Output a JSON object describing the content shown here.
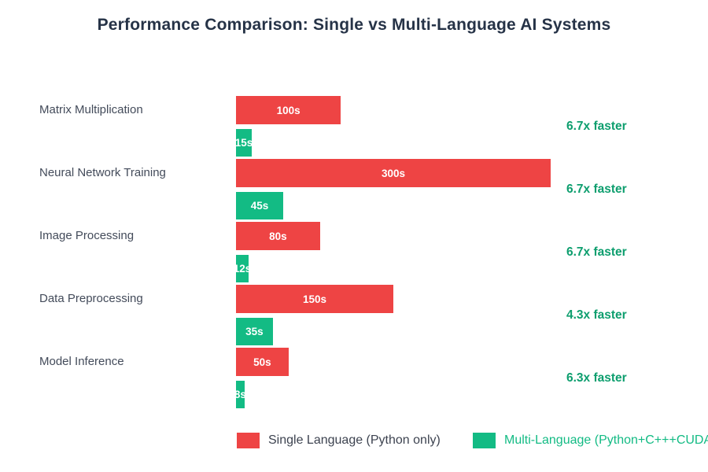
{
  "title": "Performance Comparison: Single vs Multi-Language AI Systems",
  "colors": {
    "single_bar": "#ee4444",
    "multi_bar": "#13bb84",
    "speedup_text": "#0d9e6e",
    "title_text": "#263347",
    "category_text": "#434b5a",
    "value_text": "#ffffff"
  },
  "legend": [
    {
      "label": "Single Language (Python only)",
      "color": "#ee4444"
    },
    {
      "label": "Multi-Language (Python+C+++CUDA)",
      "color": "#13bb84"
    }
  ],
  "chart_data": {
    "type": "bar",
    "orientation": "horizontal",
    "title": "Performance Comparison: Single vs Multi-Language AI Systems",
    "xlabel": "",
    "ylabel": "",
    "x_unit": "seconds",
    "xlim": [
      0,
      450
    ],
    "grid": false,
    "legend_position": "bottom",
    "categories": [
      "Matrix Multiplication",
      "Neural Network Training",
      "Image Processing",
      "Data Preprocessing",
      "Model Inference"
    ],
    "series": [
      {
        "name": "Single Language (Python only)",
        "color": "#ee4444",
        "values": [
          100,
          300,
          80,
          150,
          50
        ]
      },
      {
        "name": "Multi-Language (Python+C+++CUDA)",
        "color": "#13bb84",
        "values": [
          15,
          45,
          12,
          35,
          8
        ]
      }
    ],
    "rows": [
      {
        "category": "Matrix Multiplication",
        "single": 100,
        "single_label": "100s",
        "multi": 15,
        "multi_label": "15s",
        "speedup": "6.7x faster"
      },
      {
        "category": "Neural Network Training",
        "single": 300,
        "single_label": "300s",
        "multi": 45,
        "multi_label": "45s",
        "speedup": "6.7x faster"
      },
      {
        "category": "Image Processing",
        "single": 80,
        "single_label": "80s",
        "multi": 12,
        "multi_label": "12s",
        "speedup": "6.7x faster"
      },
      {
        "category": "Data Preprocessing",
        "single": 150,
        "single_label": "150s",
        "multi": 35,
        "multi_label": "35s",
        "speedup": "4.3x faster"
      },
      {
        "category": "Model Inference",
        "single": 50,
        "single_label": "50s",
        "multi": 8,
        "multi_label": "8s",
        "speedup": "6.3x faster"
      }
    ]
  }
}
